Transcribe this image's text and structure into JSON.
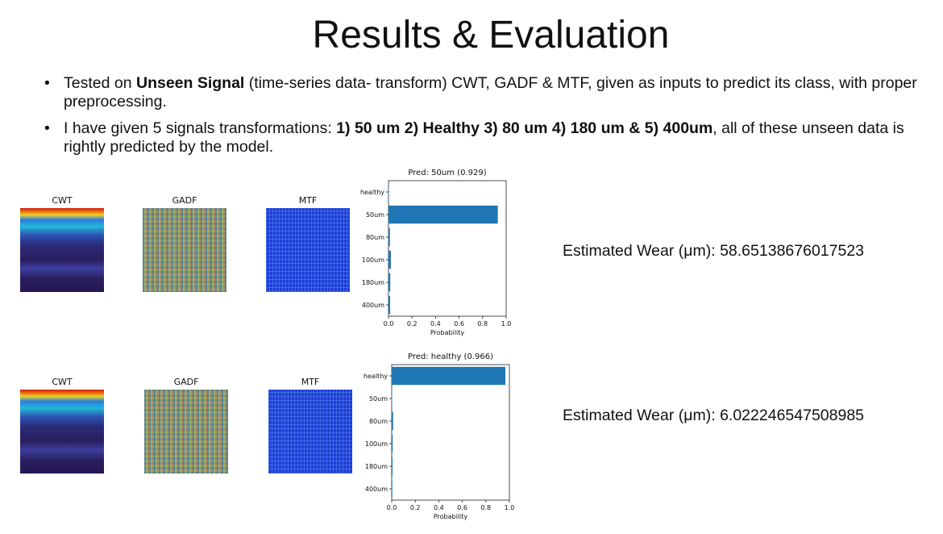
{
  "slide": {
    "title": "Results & Evaluation",
    "bullets": [
      {
        "parts": [
          {
            "text": "Tested on ",
            "bold": false
          },
          {
            "text": "Unseen Signal",
            "bold": true
          },
          {
            "text": " (time-series data- transform) CWT, GADF & MTF, given as inputs to predict its class, with proper preprocessing.",
            "bold": false
          }
        ]
      },
      {
        "parts": [
          {
            "text": "I have given 5 signals transformations: ",
            "bold": false
          },
          {
            "text": "1) 50 um 2) Healthy 3) 80 um 4) 180 um & 5) 400um",
            "bold": true
          },
          {
            "text": ", all of these unseen data is rightly predicted by the model.",
            "bold": false
          }
        ]
      }
    ]
  },
  "rows": [
    {
      "panel_labels": {
        "cwt": "CWT",
        "gadf": "GADF",
        "mtf": "MTF"
      },
      "estimate": "Estimated Wear (μm): 58.65138676017523",
      "chart_data": {
        "type": "bar",
        "orientation": "horizontal",
        "title": "Pred: 50um (0.929)",
        "xlabel": "Probability",
        "ylabel": "",
        "categories": [
          "healthy",
          "50um",
          "80um",
          "100um",
          "180um",
          "400um"
        ],
        "values": [
          0.001,
          0.929,
          0.012,
          0.02,
          0.015,
          0.014
        ],
        "xlim": [
          0,
          1.0
        ],
        "xticks": [
          "0.0",
          "0.2",
          "0.4",
          "0.6",
          "0.8",
          "1.0"
        ],
        "bar_color": "#1f77b4"
      }
    },
    {
      "panel_labels": {
        "cwt": "CWT",
        "gadf": "GADF",
        "mtf": "MTF"
      },
      "estimate": "Estimated Wear (μm): 6.022246547508985",
      "chart_data": {
        "type": "bar",
        "orientation": "horizontal",
        "title": "Pred: healthy (0.966)",
        "xlabel": "Probability",
        "ylabel": "",
        "categories": [
          "healthy",
          "50um",
          "80um",
          "100um",
          "180um",
          "400um"
        ],
        "values": [
          0.966,
          0.002,
          0.012,
          0.008,
          0.007,
          0.005
        ],
        "xlim": [
          0,
          1.0
        ],
        "xticks": [
          "0.0",
          "0.2",
          "0.4",
          "0.6",
          "0.8",
          "1.0"
        ],
        "bar_color": "#1f77b4"
      }
    }
  ]
}
